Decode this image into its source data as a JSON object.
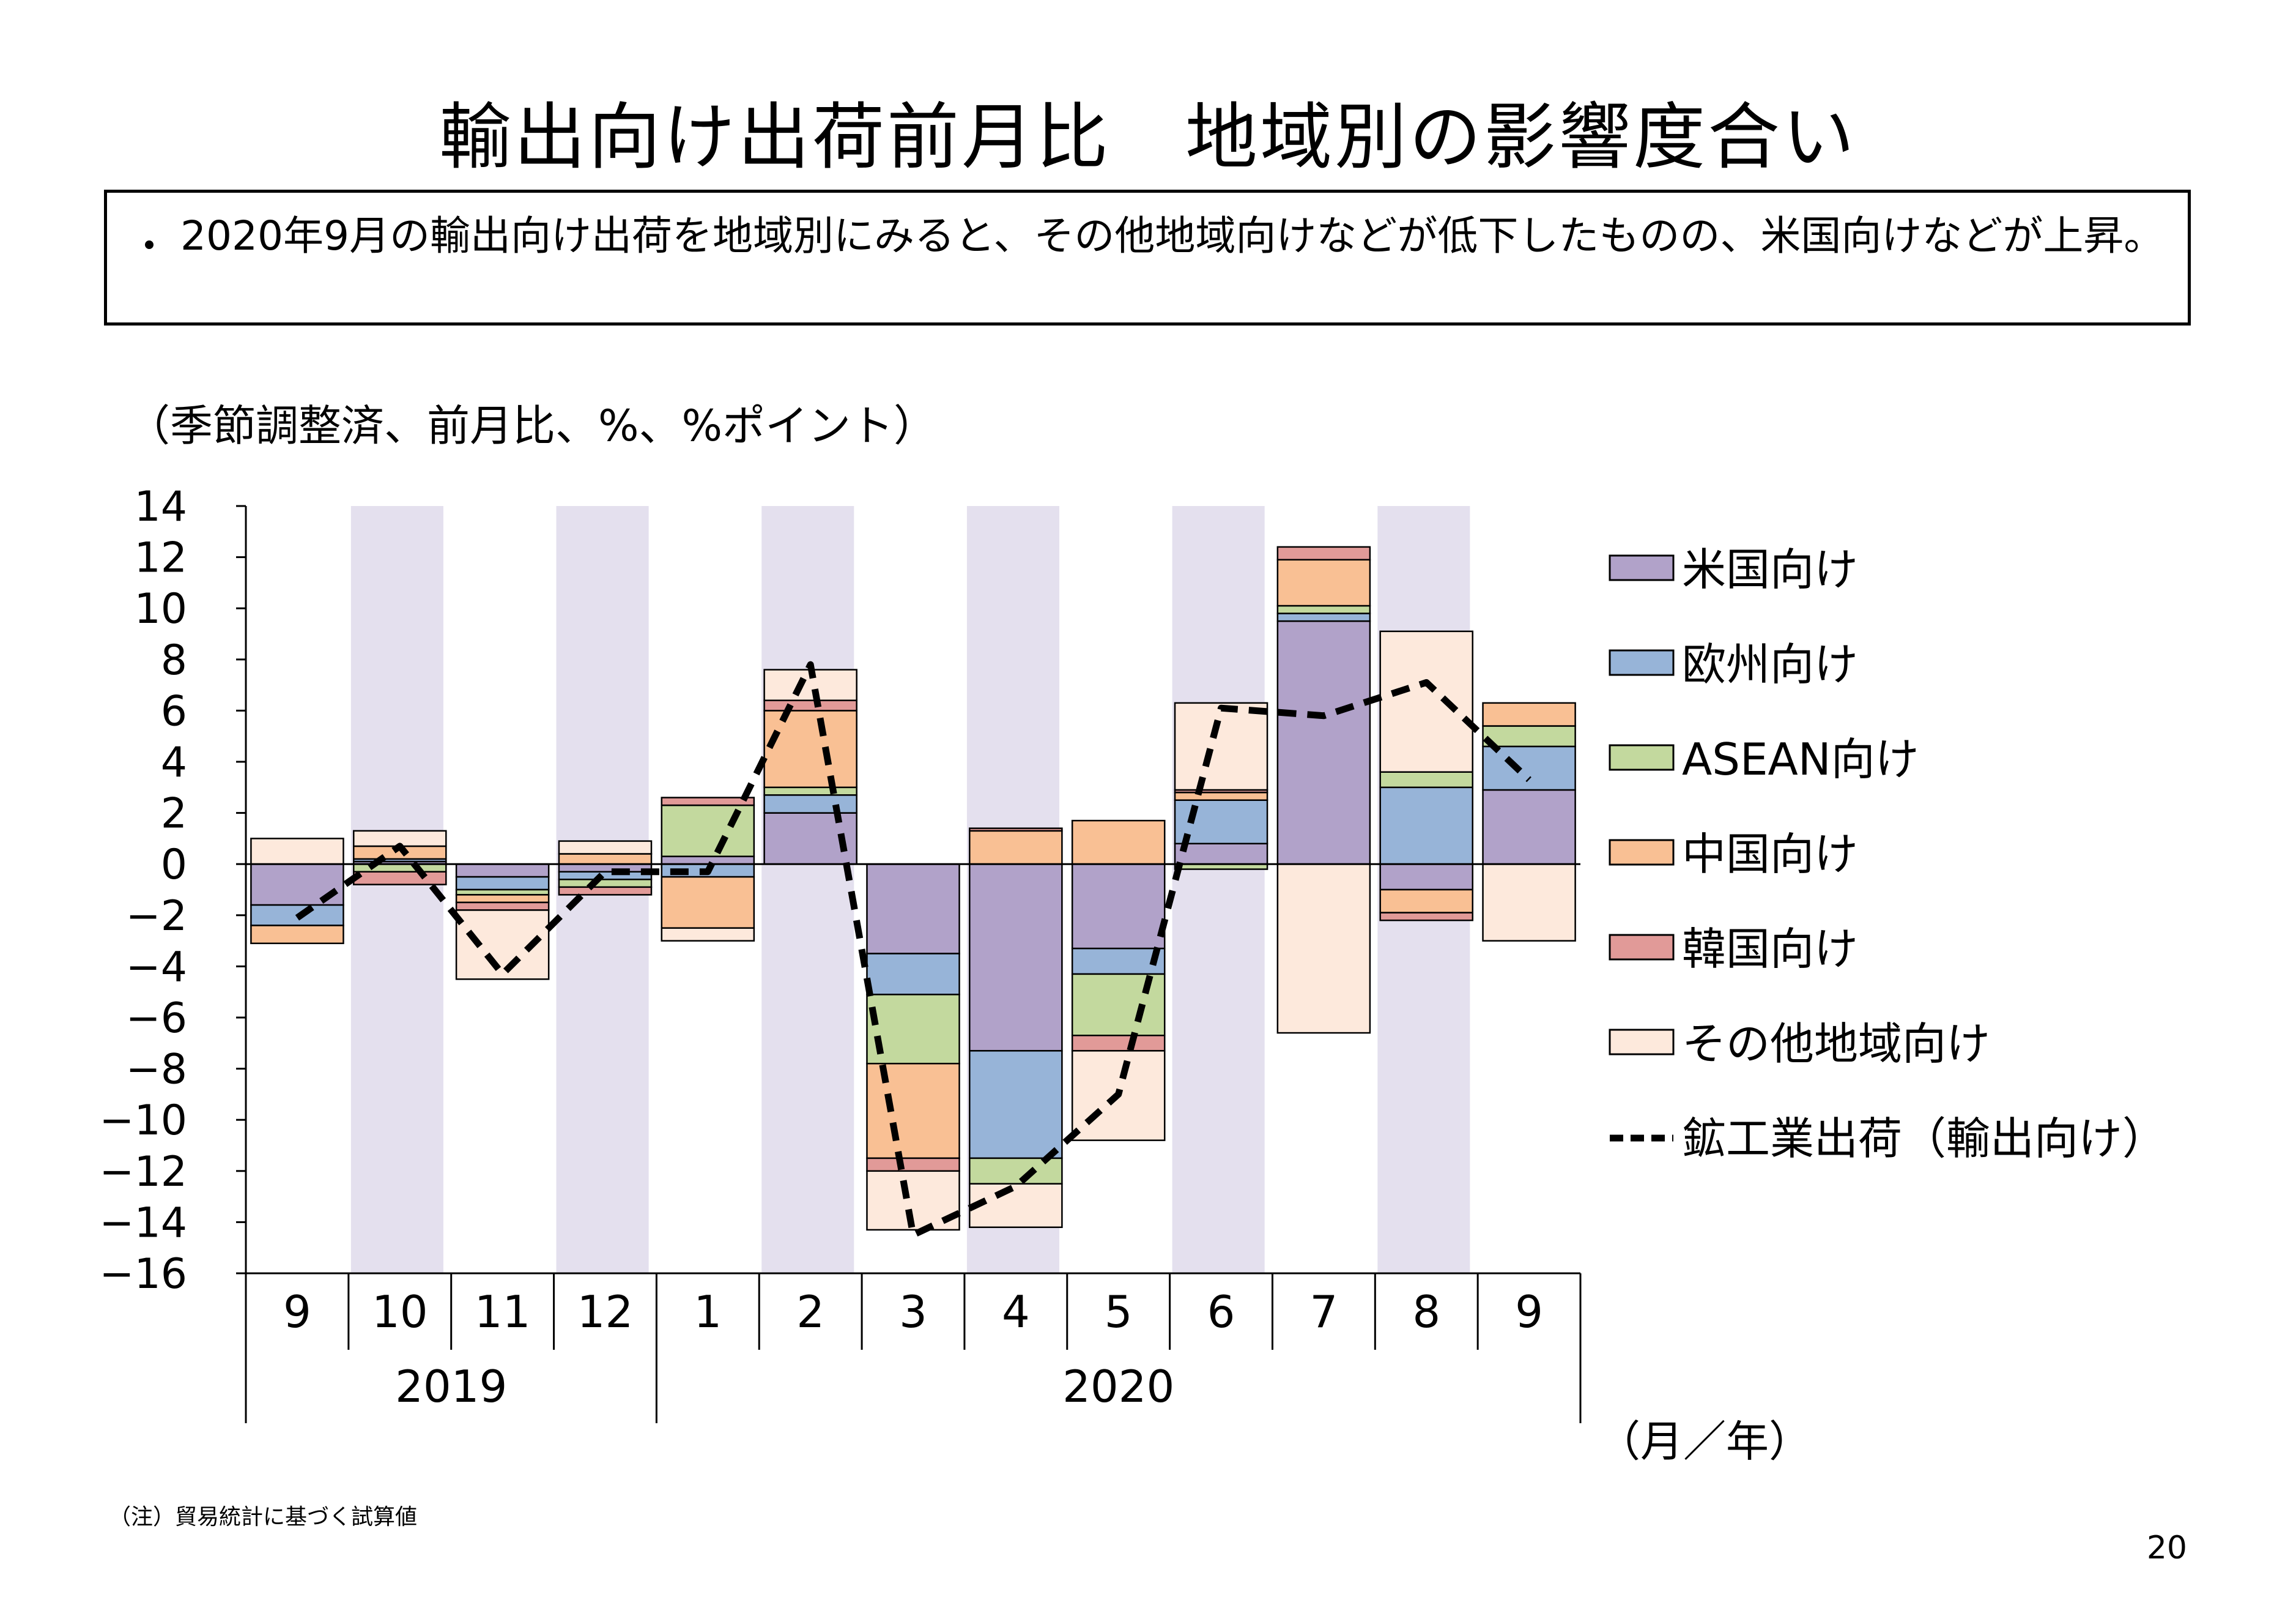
{
  "title": "輸出向け出荷前月比　地域別の影響度合い",
  "note": {
    "bullet": "・",
    "text": "2020年9月の輸出向け出荷を地域別にみると、その他地域向けなどが低下したものの、米国向けなどが上昇。"
  },
  "unit_label": "（季節調整済、前月比、%、%ポイント）",
  "axis_unit": "（月／年）",
  "footnote": "（注）貿易統計に基づく試算値",
  "page_number": "20",
  "colors": {
    "usa": "#b1a2c9",
    "europe": "#97b4d8",
    "asean": "#c3d99e",
    "china": "#f9c094",
    "korea": "#e19a98",
    "other": "#fde9dc",
    "band": "#e4e0ee",
    "line": "#000000"
  },
  "chart_data": {
    "type": "bar",
    "stacked": true,
    "months": [
      "9",
      "10",
      "11",
      "12",
      "1",
      "2",
      "3",
      "4",
      "5",
      "6",
      "7",
      "8",
      "9"
    ],
    "years": [
      {
        "label": "2019",
        "span": [
          0,
          3
        ]
      },
      {
        "label": "2020",
        "span": [
          4,
          12
        ]
      }
    ],
    "ylim": [
      -16,
      14
    ],
    "yticks": [
      14,
      12,
      10,
      8,
      6,
      4,
      2,
      0,
      -2,
      -4,
      -6,
      -8,
      -10,
      -12,
      -14,
      -16
    ],
    "shaded_bands": [
      1,
      3,
      5,
      7,
      9,
      11
    ],
    "series": [
      {
        "name": "米国向け",
        "key": "usa",
        "values": [
          -1.6,
          0.1,
          -0.5,
          -0.3,
          0.3,
          2.0,
          -3.5,
          -7.3,
          -3.3,
          0.8,
          9.5,
          -1.0,
          2.9
        ]
      },
      {
        "name": "欧州向け",
        "key": "europe",
        "values": [
          -0.8,
          0.1,
          -0.5,
          -0.3,
          -0.5,
          0.7,
          -1.6,
          -4.2,
          -1.0,
          1.7,
          0.3,
          3.0,
          1.7
        ]
      },
      {
        "name": "ASEAN向け",
        "key": "asean",
        "values": [
          0.0,
          -0.3,
          -0.2,
          -0.3,
          2.0,
          0.3,
          -2.7,
          -1.0,
          -2.4,
          -0.2,
          0.3,
          0.6,
          0.8
        ]
      },
      {
        "name": "中国向け",
        "key": "china",
        "values": [
          -0.7,
          0.5,
          -0.3,
          0.4,
          -2.0,
          3.0,
          -3.7,
          1.3,
          1.7,
          0.3,
          1.8,
          -0.9,
          0.9
        ]
      },
      {
        "name": "韓国向け",
        "key": "korea",
        "values": [
          0.0,
          -0.5,
          -0.3,
          -0.3,
          0.3,
          0.4,
          -0.5,
          0.1,
          -0.6,
          0.1,
          0.5,
          -0.3,
          0.0
        ]
      },
      {
        "name": "その他地域向け",
        "key": "other",
        "values": [
          1.0,
          0.6,
          -2.7,
          0.5,
          -0.5,
          1.2,
          -2.3,
          -1.7,
          -3.5,
          3.4,
          -6.6,
          5.5,
          -3.0
        ]
      }
    ],
    "line": {
      "name": "鉱工業出荷（輸出向け）",
      "key": "line",
      "values": [
        -2.1,
        0.7,
        -4.3,
        -0.3,
        -0.3,
        7.8,
        -14.5,
        -12.6,
        -9.0,
        6.1,
        5.8,
        7.1,
        3.3
      ]
    }
  }
}
